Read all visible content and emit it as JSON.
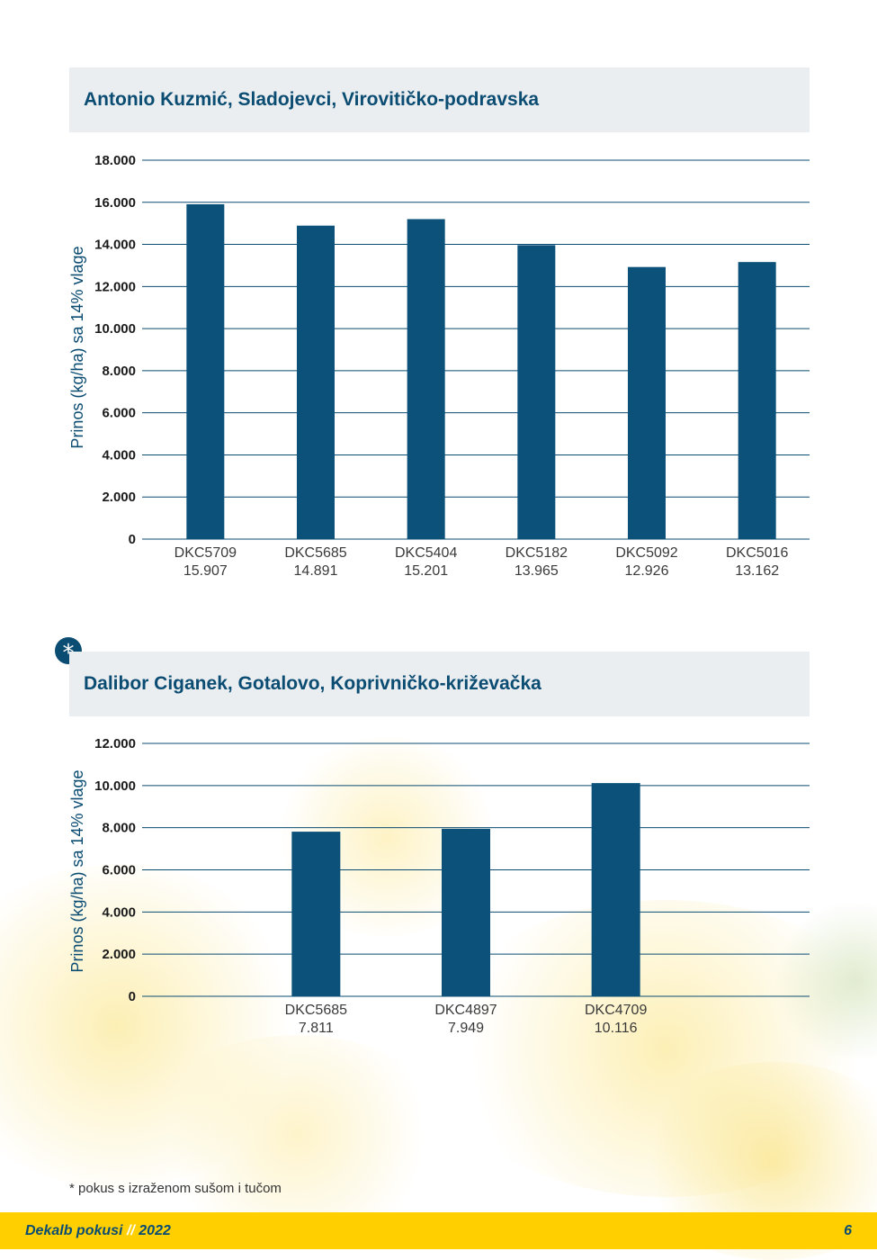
{
  "chart_data": [
    {
      "type": "bar",
      "title": "Antonio Kuzmić, Sladojevci, Virovitičko-podravska",
      "ylabel": "Prinos (kg/ha) sa 14% vlage",
      "ylim": [
        0,
        18000
      ],
      "yticks": [
        0,
        2000,
        4000,
        6000,
        8000,
        10000,
        12000,
        14000,
        16000,
        18000
      ],
      "ytick_labels": [
        "0",
        "2.000",
        "4.000",
        "6.000",
        "8.000",
        "10.000",
        "12.000",
        "14.000",
        "16.000",
        "18.000"
      ],
      "categories": [
        "DKC5709",
        "DKC5685",
        "DKC5404",
        "DKC5182",
        "DKC5092",
        "DKC5016"
      ],
      "values": [
        15907,
        14891,
        15201,
        13965,
        12926,
        13162
      ],
      "value_labels": [
        "15.907",
        "14.891",
        "15.201",
        "13.965",
        "12.926",
        "13.162"
      ],
      "grid": true,
      "color": "#0b5179"
    },
    {
      "type": "bar",
      "title": "Dalibor Ciganek, Gotalovo, Koprivničko-križevačka",
      "ylabel": "Prinos (kg/ha) sa 14% vlage",
      "ylim": [
        0,
        12000
      ],
      "yticks": [
        0,
        2000,
        4000,
        6000,
        8000,
        10000,
        12000
      ],
      "ytick_labels": [
        "0",
        "2.000",
        "4.000",
        "6.000",
        "8.000",
        "10.000",
        "12.000"
      ],
      "categories": [
        "DKC5685",
        "DKC4897",
        "DKC4709"
      ],
      "values": [
        7811,
        7949,
        10116
      ],
      "value_labels": [
        "7.811",
        "7.949",
        "10.116"
      ],
      "grid": true,
      "color": "#0b5179"
    }
  ],
  "badge": "*",
  "footnote": "* pokus s izraženom sušom i tučom",
  "footer": {
    "brand": "Dekalb pokusi",
    "separator": "//",
    "year": "2022",
    "page_number": "6"
  },
  "colors": {
    "accent": "#0b4c72",
    "bar": "#0b5179",
    "footer": "#ffcf00",
    "header_bg": "#ebeef1"
  }
}
